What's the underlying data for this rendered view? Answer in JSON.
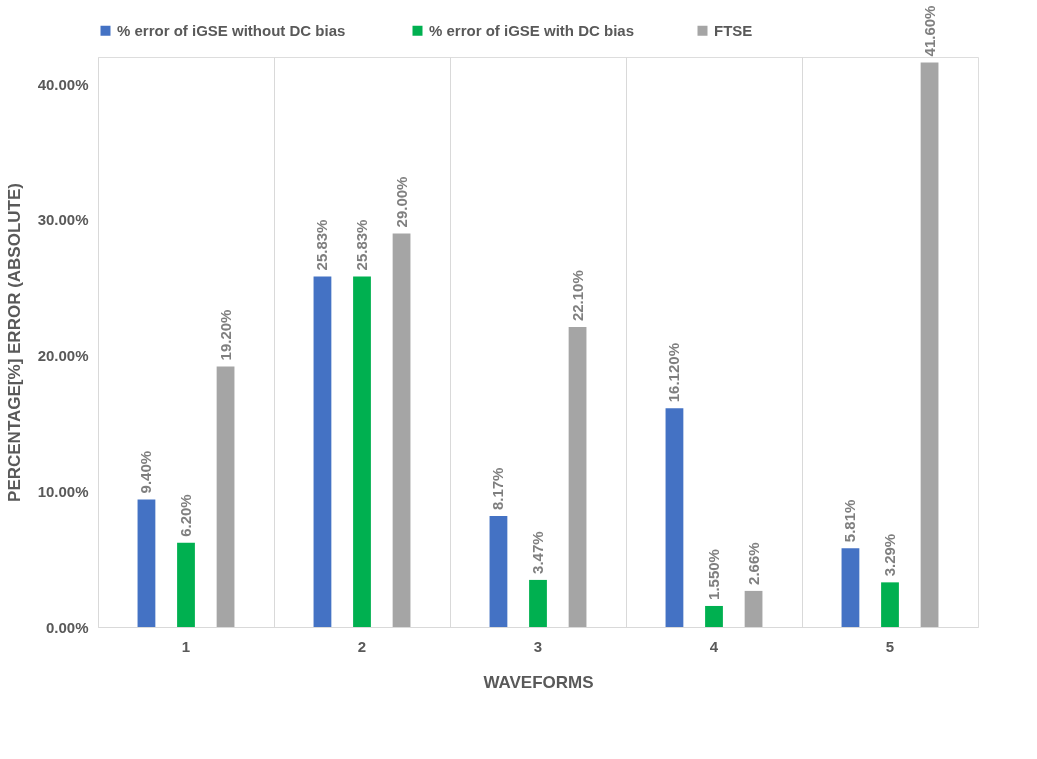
{
  "chart_data": {
    "type": "bar",
    "xlabel": "WAVEFORMS",
    "ylabel": "PERCENTAGE[%] ERROR (ABSOLUTE)",
    "categories": [
      "1",
      "2",
      "3",
      "4",
      "5"
    ],
    "series": [
      {
        "name": "% error of  iGSE without DC bias",
        "color": "#4472c4",
        "values": [
          9.4,
          25.83,
          8.17,
          16.12,
          5.81
        ],
        "value_labels": [
          "9.40%",
          "25.83%",
          "8.17%",
          "16.120%",
          "5.81%"
        ]
      },
      {
        "name": "% error of iGSE with DC bias",
        "color": "#00b050",
        "values": [
          6.2,
          25.83,
          3.47,
          1.55,
          3.29
        ],
        "value_labels": [
          "6.20%",
          "25.83%",
          "3.47%",
          "1.550%",
          "3.29%"
        ]
      },
      {
        "name": "FTSE",
        "color": "#a5a5a5",
        "values": [
          19.2,
          29.0,
          22.1,
          2.66,
          41.6
        ],
        "value_labels": [
          "19.20%",
          "29.00%",
          "22.10%",
          "2.66%",
          "41.60%"
        ]
      }
    ],
    "ylim": [
      0,
      42
    ],
    "yticks": [
      {
        "value": 0,
        "label": "0.00%"
      },
      {
        "value": 10,
        "label": "10.00%"
      },
      {
        "value": 20,
        "label": "20.00%"
      },
      {
        "value": 30,
        "label": "30.00%"
      },
      {
        "value": 40,
        "label": "40.00%"
      }
    ],
    "grid": "x",
    "legend": "top"
  }
}
